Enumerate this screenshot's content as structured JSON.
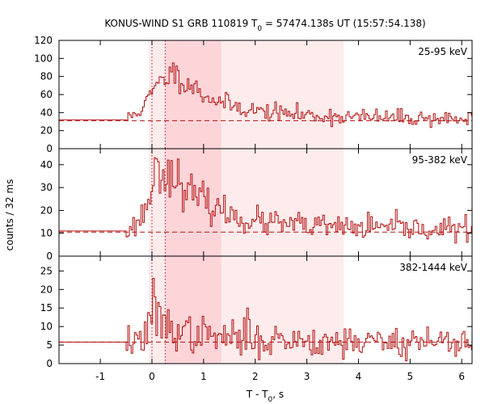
{
  "chart_data": {
    "type": "line",
    "title_prefix": "KONUS-WIND S1 GRB 110819 T",
    "title_sub": "0",
    "title_suffix": " = 57474.138s UT (15:57:54.138)",
    "xlabel_prefix": "T - T",
    "xlabel_sub": "0",
    "xlabel_suffix": ", s",
    "ylabel": "counts / 32 ms",
    "xlim": [
      -1.8,
      6.2
    ],
    "x_ticks": [
      -1,
      0,
      1,
      2,
      3,
      4,
      5,
      6
    ],
    "x_tick_labels": [
      "-1",
      "0",
      "1",
      "2",
      "3",
      "4",
      "5",
      "6"
    ],
    "bin_width_s": 0.032,
    "colors": {
      "curve": "#b01010",
      "band_dark": "#fdd5d9",
      "band_light": "#feeced"
    },
    "highlight_intervals": [
      {
        "from": 0.256,
        "to": 1.344,
        "shade": "dark"
      },
      {
        "from": 1.344,
        "to": 3.712,
        "shade": "light"
      },
      {
        "from": -0.064,
        "to": 0.256,
        "shade": "light"
      }
    ],
    "vertical_dotted_lines_x": [
      0.0,
      0.256
    ],
    "panels": [
      {
        "label": "25-95 keV",
        "ylim": [
          0,
          120
        ],
        "y_ticks": [
          0,
          20,
          40,
          60,
          80,
          100,
          120
        ],
        "y_tick_labels": [
          "0",
          "20",
          "40",
          "60",
          "80",
          "100",
          "120"
        ],
        "background_level": 31,
        "pre_level": 32,
        "burst_start": -0.5,
        "key_points": [
          [
            -0.5,
            32
          ],
          [
            -0.35,
            38
          ],
          [
            -0.2,
            45
          ],
          [
            -0.05,
            55
          ],
          [
            0.05,
            68
          ],
          [
            0.15,
            72
          ],
          [
            0.25,
            78
          ],
          [
            0.35,
            82
          ],
          [
            0.5,
            80
          ],
          [
            0.7,
            72
          ],
          [
            1.0,
            60
          ],
          [
            1.4,
            50
          ],
          [
            2.0,
            42
          ],
          [
            3.0,
            37
          ],
          [
            4.0,
            35
          ],
          [
            6.2,
            33
          ]
        ],
        "noise": 4.5,
        "seed": 11,
        "spikes": [
          [
            0.4,
            95
          ],
          [
            0.8,
            72
          ]
        ]
      },
      {
        "label": "95-382 keV",
        "ylim": [
          0,
          47
        ],
        "y_ticks": [
          0,
          10,
          20,
          30,
          40
        ],
        "y_tick_labels": [
          "0",
          "10",
          "20",
          "30",
          "40"
        ],
        "background_level": 10.5,
        "pre_level": 11,
        "burst_start": -0.5,
        "key_points": [
          [
            -0.5,
            11
          ],
          [
            -0.35,
            13
          ],
          [
            -0.2,
            17
          ],
          [
            -0.05,
            26
          ],
          [
            0.05,
            35
          ],
          [
            0.15,
            38
          ],
          [
            0.3,
            36
          ],
          [
            0.5,
            34
          ],
          [
            0.7,
            28
          ],
          [
            1.0,
            24
          ],
          [
            1.4,
            19
          ],
          [
            2.0,
            15
          ],
          [
            3.0,
            13
          ],
          [
            4.0,
            12.5
          ],
          [
            6.2,
            11.5
          ]
        ],
        "noise": 2.6,
        "seed": 23,
        "spikes": [
          [
            0.05,
            43
          ],
          [
            0.3,
            42
          ]
        ]
      },
      {
        "label": "382-1444 keV",
        "ylim": [
          0,
          29
        ],
        "y_ticks": [
          0,
          5,
          10,
          15,
          20,
          25
        ],
        "y_tick_labels": [
          "0",
          "5",
          "10",
          "15",
          "20",
          "25"
        ],
        "background_level": 5.8,
        "pre_level": 5.8,
        "burst_start": -0.5,
        "key_points": [
          [
            -0.5,
            6
          ],
          [
            -0.2,
            6.5
          ],
          [
            -0.05,
            9
          ],
          [
            0.05,
            12
          ],
          [
            0.15,
            11
          ],
          [
            0.3,
            10
          ],
          [
            0.6,
            8.5
          ],
          [
            1.0,
            7.5
          ],
          [
            2.0,
            6.5
          ],
          [
            4.0,
            6
          ],
          [
            6.2,
            6
          ]
        ],
        "noise": 2.2,
        "seed": 37,
        "spikes": [
          [
            0.0,
            23
          ],
          [
            0.06,
            18
          ],
          [
            1.85,
            15
          ],
          [
            0.24,
            13
          ]
        ]
      }
    ]
  }
}
